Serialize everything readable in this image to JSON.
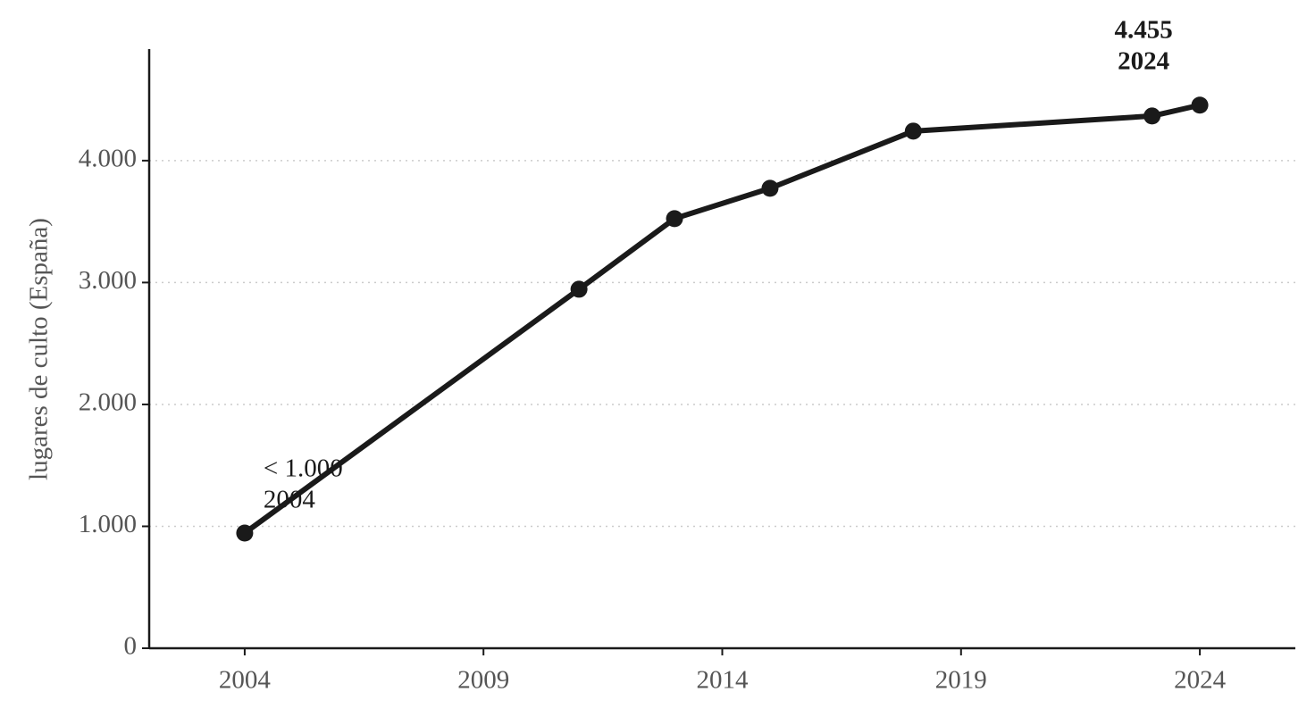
{
  "chart_data": {
    "type": "line",
    "y_label": "lugares de culto (España)",
    "x": [
      2004,
      2011,
      2013,
      2015,
      2018,
      2023,
      2024
    ],
    "series": [
      {
        "color": "#1a1a1a",
        "values": [
          945,
          2945,
          3524,
          3773,
          4242,
          4366,
          4455
        ]
      }
    ],
    "xlim": [
      2002,
      2026
    ],
    "xticks": [
      2004,
      2009,
      2014,
      2019,
      2024
    ],
    "ylim": [
      0,
      4900
    ],
    "yticks": [
      0,
      {
        "value": 1000,
        "label": "1.000"
      },
      {
        "value": 2000,
        "label": "2.000"
      },
      {
        "value": 3000,
        "label": "3.000"
      },
      {
        "value": 4000,
        "label": "4.000"
      }
    ],
    "grid": true,
    "annotations": [
      {
        "lines": [
          "< 1.000",
          "2004"
        ],
        "bold": false
      },
      {
        "lines": [
          "4.455",
          "2024"
        ],
        "bold": true
      }
    ]
  }
}
